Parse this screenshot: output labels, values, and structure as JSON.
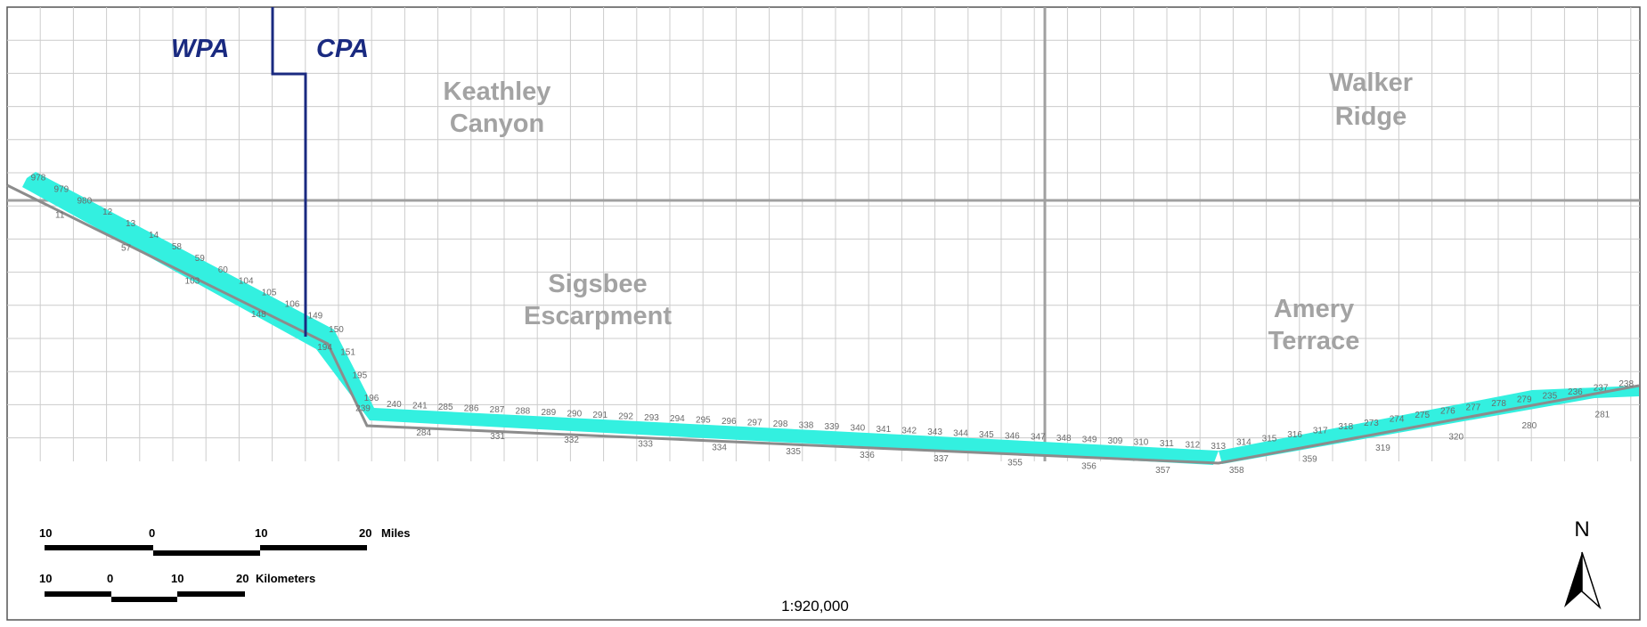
{
  "areas": {
    "keathley": [
      "Keathley",
      "Canyon"
    ],
    "walker": [
      "Walker",
      "Ridge"
    ],
    "sigsbee": [
      "Sigsbee",
      "Escarpment"
    ],
    "amery": [
      "Amery",
      "Terrace"
    ]
  },
  "planning_areas": {
    "west": "WPA",
    "central": "CPA"
  },
  "scalebar_miles": {
    "ticks": [
      "10",
      "0",
      "10",
      "20"
    ],
    "unit": "Miles"
  },
  "scalebar_km": {
    "ticks": [
      "10",
      "0",
      "10",
      "20"
    ],
    "unit": "Kilometers"
  },
  "scale_ratio": "1:920,000",
  "north_label": "N",
  "block_labels_above": [
    "978",
    "979",
    "980",
    "12",
    "13",
    "14",
    "58",
    "59",
    "60",
    "104",
    "105",
    "106",
    "149",
    "150",
    "151",
    "195",
    "196",
    "240",
    "241",
    "285",
    "286",
    "287",
    "288",
    "289",
    "290",
    "291",
    "292",
    "293",
    "294",
    "295",
    "296",
    "297",
    "298",
    "338",
    "339",
    "340",
    "341",
    "342",
    "343",
    "344",
    "345",
    "346",
    "347",
    "348",
    "349",
    "309",
    "310",
    "311",
    "312",
    "313",
    "314",
    "315",
    "316",
    "317",
    "318",
    "273",
    "274",
    "275",
    "276",
    "277",
    "278",
    "279",
    "235",
    "236",
    "237",
    "238"
  ],
  "block_labels_below": [
    "11",
    "57",
    "103",
    "148",
    "194",
    "239",
    "284",
    "331",
    "332",
    "333",
    "334",
    "335",
    "336",
    "337",
    "355",
    "356",
    "357",
    "358",
    "359",
    "319",
    "320",
    "280",
    "281"
  ],
  "colors": {
    "corridor": "#33f0e0",
    "grid_minor": "#cccccc",
    "grid_major": "#a0a0a0",
    "boundary": "#1a2a80",
    "label": "#a3a3a3"
  }
}
